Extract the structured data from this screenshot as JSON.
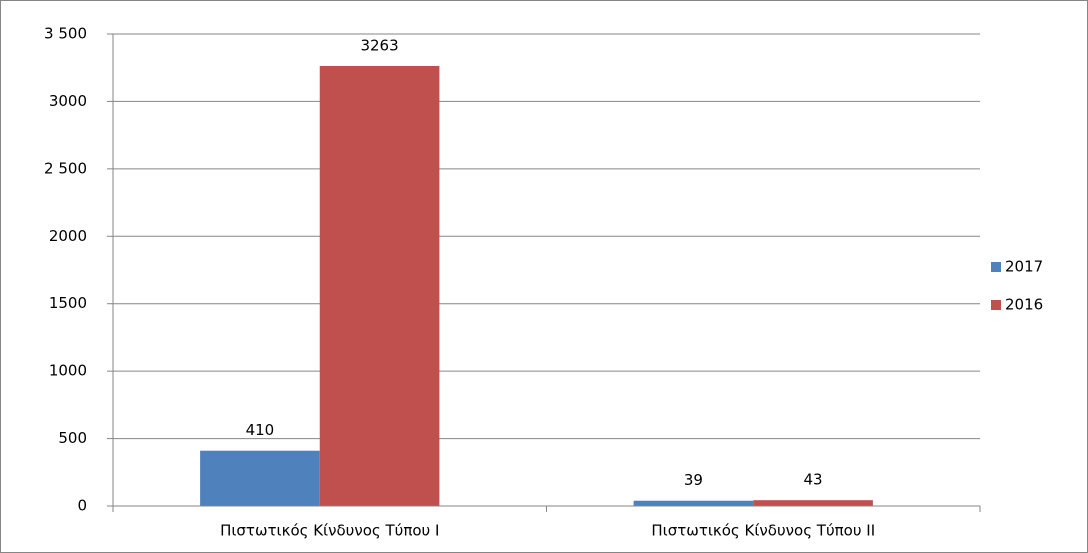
{
  "chart_data": {
    "type": "bar",
    "categories": [
      "Πιστωτικός Κίνδυνος Τύπου Ι",
      "Πιστωτικός Κίνδυνος Τύπου ΙΙ"
    ],
    "series": [
      {
        "name": "2017",
        "color": "#4f81bd",
        "values": [
          410,
          39
        ]
      },
      {
        "name": "2016",
        "color": "#c0504d",
        "values": [
          3263,
          43
        ]
      }
    ],
    "ylim": [
      0,
      3500
    ],
    "yticks": [
      0,
      500,
      1000,
      1500,
      2000,
      {
        "value": 2500,
        "label": "2 500"
      },
      3000,
      {
        "value": 3500,
        "label": "3 500"
      }
    ],
    "grid": true,
    "legend": "right"
  }
}
